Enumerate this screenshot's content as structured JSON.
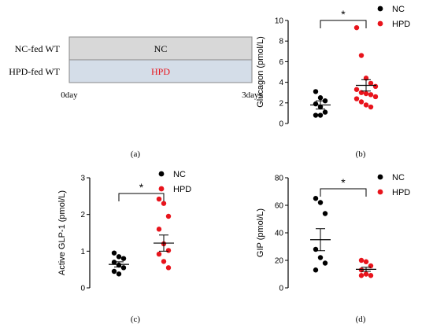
{
  "panel_a": {
    "rows": [
      {
        "label": "NC-fed WT",
        "bar_text": "NC",
        "fill": "#d8d8d8",
        "text_color": "#000000"
      },
      {
        "label": "HPD-fed WT",
        "bar_text": "HPD",
        "fill": "#d4dde8",
        "text_color": "#e8141c"
      }
    ],
    "start_label": "0day",
    "end_label": "3days",
    "caption": "(a)"
  },
  "colors": {
    "nc": "#000000",
    "hpd": "#e8141c"
  },
  "chart_data": [
    {
      "type": "scatter",
      "caption": "(b)",
      "ylabel": "Glucagon (pmol/L)",
      "ylim": [
        0,
        10
      ],
      "yticks": [
        0,
        2,
        4,
        6,
        8,
        10
      ],
      "legend": [
        "NC",
        "HPD"
      ],
      "legend_placement": "top-right",
      "significance": "*",
      "series": [
        {
          "name": "NC",
          "mean": 1.8,
          "sem": 0.4,
          "values": [
            3.1,
            2.5,
            2.2,
            1.9,
            1.6,
            1.1,
            0.8,
            0.8
          ]
        },
        {
          "name": "HPD",
          "mean": 3.7,
          "sem": 0.55,
          "values": [
            9.3,
            6.6,
            4.4,
            3.9,
            3.6,
            3.3,
            3.0,
            2.9,
            2.8,
            2.6,
            2.4,
            2.1,
            1.8,
            1.6
          ]
        }
      ]
    },
    {
      "type": "scatter",
      "caption": "(c)",
      "ylabel": "Active GLP-1 (pmol/L)",
      "ylim": [
        0,
        3
      ],
      "yticks": [
        0,
        1,
        2,
        3
      ],
      "legend": [
        "NC",
        "HPD"
      ],
      "legend_placement": "top-right",
      "significance": "*",
      "series": [
        {
          "name": "NC",
          "mean": 0.64,
          "sem": 0.07,
          "values": [
            0.95,
            0.85,
            0.8,
            0.7,
            0.62,
            0.55,
            0.45,
            0.38
          ]
        },
        {
          "name": "HPD",
          "mean": 1.22,
          "sem": 0.22,
          "values": [
            2.42,
            2.3,
            1.95,
            1.6,
            1.2,
            1.02,
            0.92,
            0.72,
            0.55
          ]
        }
      ]
    },
    {
      "type": "scatter",
      "caption": "(d)",
      "ylabel": "GIP (pmol/L)",
      "ylim": [
        0,
        80
      ],
      "yticks": [
        0,
        20,
        40,
        60,
        80
      ],
      "legend": [
        "NC",
        "HPD"
      ],
      "legend_placement": "top-right",
      "significance": "*",
      "series": [
        {
          "name": "NC",
          "mean": 35,
          "sem": 8,
          "values": [
            65,
            62,
            54,
            28,
            22,
            18,
            13
          ]
        },
        {
          "name": "HPD",
          "mean": 13.5,
          "sem": 1.5,
          "values": [
            20,
            19,
            16,
            13,
            10,
            9,
            9
          ]
        }
      ]
    }
  ]
}
